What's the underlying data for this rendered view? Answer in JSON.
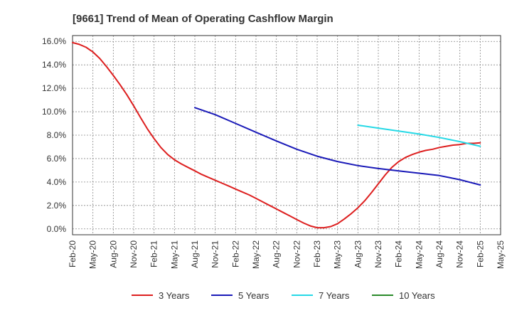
{
  "chart_data": {
    "type": "line",
    "title": "[9661]  Trend of Mean of Operating Cashflow Margin",
    "xlabel": "",
    "ylabel": "",
    "x_ticks": [
      "Feb-20",
      "May-20",
      "Aug-20",
      "Nov-20",
      "Feb-21",
      "May-21",
      "Aug-21",
      "Nov-21",
      "Feb-22",
      "May-22",
      "Aug-22",
      "Nov-22",
      "Feb-23",
      "May-23",
      "Aug-23",
      "Nov-23",
      "Feb-24",
      "May-24",
      "Aug-24",
      "Nov-24",
      "Feb-25",
      "May-25"
    ],
    "y_ticks": [
      "0.0%",
      "2.0%",
      "4.0%",
      "6.0%",
      "8.0%",
      "10.0%",
      "12.0%",
      "14.0%",
      "16.0%"
    ],
    "ylim": [
      -0.5,
      16.5
    ],
    "grid": true,
    "legend_position": "bottom",
    "series": [
      {
        "name": "3 Years",
        "color": "#dd1f1f",
        "x": [
          "2020-02",
          "2020-03",
          "2020-04",
          "2020-05",
          "2020-06",
          "2020-07",
          "2020-08",
          "2020-09",
          "2020-10",
          "2020-11",
          "2020-12",
          "2021-01",
          "2021-02",
          "2021-03",
          "2021-04",
          "2021-05",
          "2021-06",
          "2021-07",
          "2021-08",
          "2021-09",
          "2021-10",
          "2021-11",
          "2021-12",
          "2022-01",
          "2022-02",
          "2022-03",
          "2022-04",
          "2022-05",
          "2022-06",
          "2022-07",
          "2022-08",
          "2022-09",
          "2022-10",
          "2022-11",
          "2022-12",
          "2023-01",
          "2023-02",
          "2023-03",
          "2023-04",
          "2023-05",
          "2023-06",
          "2023-07",
          "2023-08",
          "2023-09",
          "2023-10",
          "2023-11",
          "2023-12",
          "2024-01",
          "2024-02",
          "2024-03",
          "2024-04",
          "2024-05",
          "2024-06",
          "2024-07",
          "2024-08",
          "2024-09",
          "2024-10",
          "2024-11",
          "2024-12",
          "2025-01",
          "2025-02"
        ],
        "values": [
          15.9,
          15.75,
          15.5,
          15.1,
          14.55,
          13.85,
          13.1,
          12.3,
          11.45,
          10.5,
          9.5,
          8.55,
          7.7,
          6.95,
          6.35,
          5.9,
          5.55,
          5.25,
          4.95,
          4.65,
          4.4,
          4.15,
          3.9,
          3.65,
          3.4,
          3.15,
          2.9,
          2.6,
          2.3,
          2.0,
          1.7,
          1.4,
          1.1,
          0.8,
          0.5,
          0.25,
          0.1,
          0.1,
          0.2,
          0.45,
          0.85,
          1.3,
          1.8,
          2.4,
          3.1,
          3.85,
          4.6,
          5.25,
          5.75,
          6.1,
          6.35,
          6.55,
          6.7,
          6.8,
          6.95,
          7.05,
          7.15,
          7.2,
          7.3,
          7.3,
          7.35
        ]
      },
      {
        "name": "5 Years",
        "color": "#1a1ab8",
        "x": [
          "2021-08",
          "2021-11",
          "2022-02",
          "2022-05",
          "2022-08",
          "2022-11",
          "2023-02",
          "2023-05",
          "2023-08",
          "2023-11",
          "2024-02",
          "2024-05",
          "2024-08",
          "2024-11",
          "2025-02"
        ],
        "values": [
          10.35,
          9.75,
          9.0,
          8.25,
          7.5,
          6.8,
          6.2,
          5.75,
          5.4,
          5.15,
          4.95,
          4.75,
          4.55,
          4.2,
          3.75
        ]
      },
      {
        "name": "7 Years",
        "color": "#26d9e6",
        "x": [
          "2023-08",
          "2023-11",
          "2024-02",
          "2024-05",
          "2024-08",
          "2024-11",
          "2025-02"
        ],
        "values": [
          8.85,
          8.6,
          8.35,
          8.1,
          7.8,
          7.45,
          7.05
        ]
      },
      {
        "name": "10 Years",
        "color": "#2a8a2a",
        "x": [],
        "values": []
      }
    ]
  }
}
